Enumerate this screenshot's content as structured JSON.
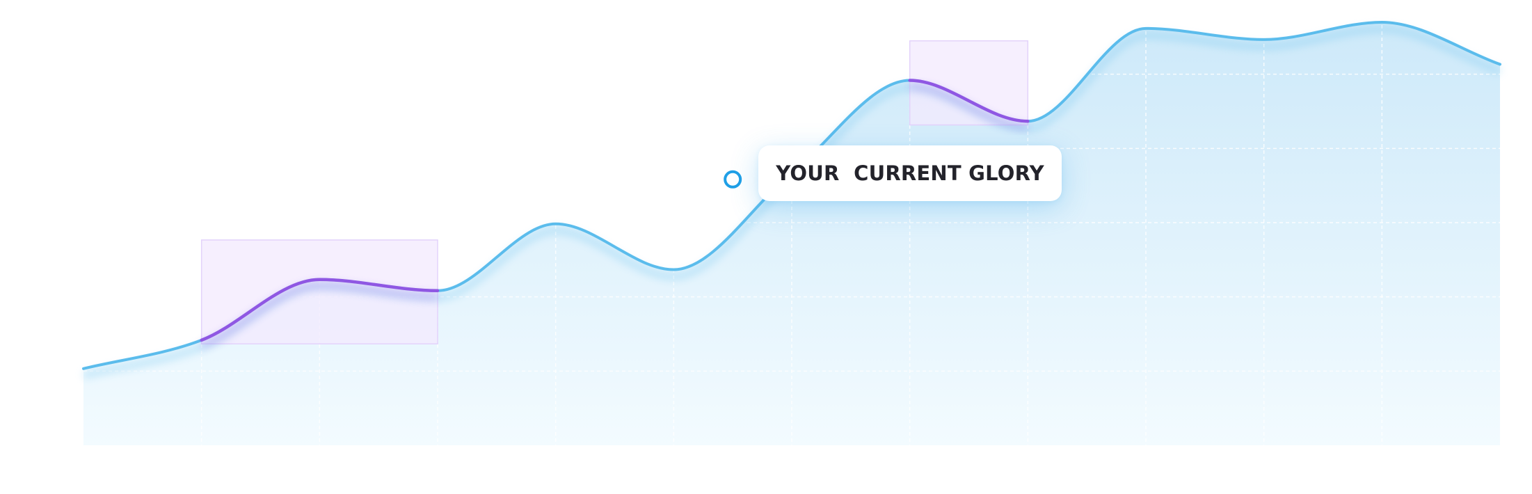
{
  "chart_data": {
    "type": "area",
    "title": "",
    "xlabel": "",
    "ylabel": "",
    "grid": true,
    "x": [
      0,
      1,
      2,
      3,
      4,
      5,
      6,
      7,
      8,
      9,
      10,
      11,
      12
    ],
    "series": [
      {
        "values": [
          6.2,
          8.5,
          13.4,
          12.5,
          17.9,
          14.2,
          22.0,
          29.5,
          26.2,
          33.7,
          32.8,
          34.2,
          30.8
        ]
      }
    ],
    "highlight_ranges": [
      [
        1,
        3
      ],
      [
        7,
        8
      ]
    ],
    "marked_point": {
      "x": 5.5,
      "y": 21.5
    },
    "annotation": "YOUR  CURRENT GLORY",
    "colors": {
      "line": "#5bbcec",
      "area_top": "#cde9f9",
      "area_bottom": "#f3fbff",
      "highlight_line": "#8f57e3",
      "highlight_fill": "#f3e9fd",
      "marker": "#1f9fe6"
    }
  }
}
